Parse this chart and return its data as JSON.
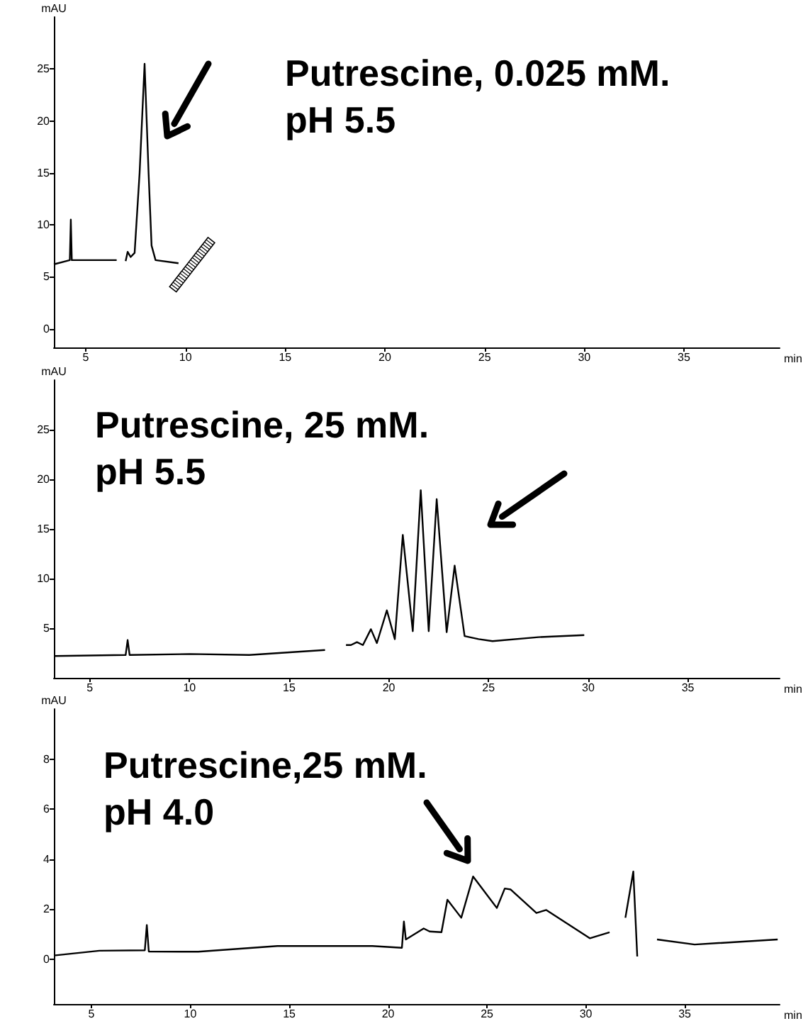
{
  "chart_data": [
    {
      "type": "line",
      "title": "Putrescine, 0.025 mM.\npH 5.5",
      "xlabel": "min",
      "ylabel": "mAU",
      "color": "#000000",
      "x": [
        3.4,
        4.0,
        4.2,
        4.25,
        4.3,
        5.5,
        6.55,
        6.6,
        6.7,
        6.9,
        7.0,
        7.1,
        7.25,
        7.45,
        7.7,
        7.95,
        8.15,
        8.3,
        8.5,
        9.65
      ],
      "values": [
        6.2,
        6.5,
        6.6,
        10.5,
        6.6,
        6.6,
        6.6,
        null,
        null,
        null,
        6.5,
        7.4,
        6.9,
        7.3,
        15,
        25.5,
        15,
        8,
        6.6,
        6.3
      ],
      "xlim": [
        3.4,
        39.8
      ],
      "ylim": [
        -1.8,
        30
      ],
      "xticks": [
        5,
        10,
        15,
        20,
        25,
        30,
        35
      ],
      "yticks": [
        0,
        5,
        10,
        15,
        20,
        25
      ],
      "grid": false
    },
    {
      "type": "line",
      "title": "Putrescine, 25 mM.\npH 5.5",
      "xlabel": "min",
      "ylabel": "mAU",
      "color": "#000000",
      "x": [
        3.2,
        6.8,
        6.9,
        7.0,
        10,
        13,
        16.8,
        16.9,
        17.2,
        17.8,
        17.85,
        18.1,
        18.4,
        18.7,
        19.1,
        19.4,
        19.9,
        20.3,
        20.7,
        21.2,
        21.6,
        22.0,
        22.4,
        22.9,
        23.3,
        23.8,
        24.5,
        25.2,
        27.5,
        29.8
      ],
      "values": [
        2.2,
        2.3,
        3.8,
        2.3,
        2.4,
        2.3,
        2.8,
        null,
        null,
        null,
        3.3,
        3.3,
        3.6,
        3.3,
        4.9,
        3.5,
        6.8,
        3.9,
        14.4,
        4.7,
        18.9,
        4.7,
        18.0,
        4.6,
        11.3,
        4.2,
        3.9,
        3.7,
        4.1,
        4.3
      ],
      "xlim": [
        3.2,
        39.6
      ],
      "ylim": [
        0,
        30
      ],
      "xticks": [
        5,
        10,
        15,
        20,
        25,
        30,
        35
      ],
      "yticks": [
        5,
        10,
        15,
        20,
        25
      ],
      "grid": false
    },
    {
      "type": "line",
      "title": "Putrescine,25 mM.\npH 4.0",
      "xlabel": "min",
      "ylabel": "mAU",
      "color": "#000000",
      "x": [
        3.1,
        5.4,
        7.7,
        7.8,
        7.9,
        10.4,
        14.4,
        19.2,
        20.7,
        20.8,
        20.9,
        21.8,
        22.1,
        22.7,
        23.0,
        23.7,
        24.3,
        25.5,
        25.9,
        26.2,
        27.5,
        28.0,
        30.2,
        31.2,
        31.6,
        32.0,
        32.4,
        32.6,
        32.7,
        33.4,
        33.6,
        35.5,
        39.7
      ],
      "values": [
        0.14,
        0.33,
        0.35,
        1.36,
        0.3,
        0.29,
        0.52,
        0.52,
        0.45,
        1.5,
        0.78,
        1.22,
        1.1,
        1.07,
        2.37,
        1.65,
        3.3,
        2.04,
        2.82,
        2.78,
        1.84,
        1.96,
        0.83,
        1.07,
        null,
        1.65,
        3.5,
        0.1,
        null,
        null,
        0.78,
        0.58,
        0.78
      ],
      "xlim": [
        3.1,
        39.8
      ],
      "ylim": [
        -1.8,
        10
      ],
      "xticks": [
        5,
        10,
        15,
        20,
        25,
        30,
        35
      ],
      "yticks": [
        0,
        2,
        4,
        6,
        8
      ],
      "grid": false
    }
  ]
}
